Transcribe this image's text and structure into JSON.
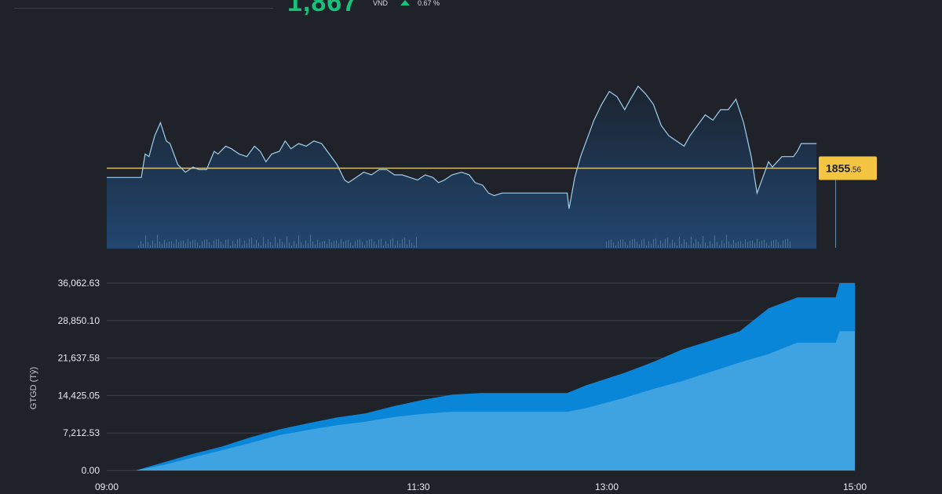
{
  "header": {
    "price": "1,867",
    "currency": "VND",
    "change_pct": "0.67 %",
    "accent_up": "#18c27a"
  },
  "chart_data": [
    {
      "type": "line",
      "series": [
        {
          "points": [
            [
              "09:00",
              1852
            ],
            [
              "09:10",
              1852
            ],
            [
              "09:18",
              1852
            ],
            [
              "09:20",
              1861
            ],
            [
              "09:22",
              1860
            ],
            [
              "09:25",
              1868
            ],
            [
              "09:28",
              1873
            ],
            [
              "09:31",
              1866
            ],
            [
              "09:33",
              1865
            ],
            [
              "09:37",
              1857
            ],
            [
              "09:41",
              1854
            ],
            [
              "09:45",
              1856
            ],
            [
              "09:48",
              1855
            ],
            [
              "09:52",
              1855
            ],
            [
              "09:56",
              1862
            ],
            [
              "09:58",
              1861
            ],
            [
              "10:02",
              1864
            ],
            [
              "10:05",
              1863
            ],
            [
              "10:09",
              1861
            ],
            [
              "10:13",
              1860
            ],
            [
              "10:17",
              1864
            ],
            [
              "10:20",
              1862
            ],
            [
              "10:23",
              1858
            ],
            [
              "10:26",
              1861
            ],
            [
              "10:30",
              1862
            ],
            [
              "10:33",
              1866
            ],
            [
              "10:36",
              1863
            ],
            [
              "10:40",
              1865
            ],
            [
              "10:44",
              1864
            ],
            [
              "10:48",
              1866
            ],
            [
              "10:52",
              1865
            ],
            [
              "10:56",
              1861
            ],
            [
              "11:00",
              1857
            ],
            [
              "11:04",
              1851
            ],
            [
              "11:06",
              1850
            ],
            [
              "11:10",
              1852
            ],
            [
              "11:14",
              1854
            ],
            [
              "11:18",
              1853
            ],
            [
              "11:22",
              1855
            ],
            [
              "11:26",
              1855
            ],
            [
              "11:30",
              1853
            ],
            [
              "11:34",
              1853
            ],
            [
              "11:38",
              1852
            ],
            [
              "11:42",
              1851
            ],
            [
              "11:46",
              1853
            ],
            [
              "11:50",
              1852
            ],
            [
              "11:53",
              1850
            ],
            [
              "11:56",
              1851
            ],
            [
              "12:00",
              1853
            ],
            [
              "12:05",
              1854
            ],
            [
              "12:09",
              1853
            ],
            [
              "12:12",
              1850
            ],
            [
              "12:16",
              1849
            ],
            [
              "12:19",
              1846
            ],
            [
              "12:22",
              1845
            ],
            [
              "12:26",
              1846
            ],
            [
              "12:29",
              1846
            ],
            [
              "12:30",
              1846
            ],
            [
              "13:00",
              1846
            ],
            [
              "13:01",
              1840
            ],
            [
              "13:04",
              1852
            ],
            [
              "13:07",
              1860
            ],
            [
              "13:10",
              1866
            ],
            [
              "13:14",
              1874
            ],
            [
              "13:18",
              1880
            ],
            [
              "13:22",
              1885
            ],
            [
              "13:26",
              1883
            ],
            [
              "13:30",
              1878
            ],
            [
              "13:33",
              1882
            ],
            [
              "13:37",
              1887
            ],
            [
              "13:41",
              1884
            ],
            [
              "13:45",
              1880
            ],
            [
              "13:49",
              1872
            ],
            [
              "13:53",
              1868
            ],
            [
              "13:57",
              1866
            ],
            [
              "14:01",
              1864
            ],
            [
              "14:04",
              1868
            ],
            [
              "14:08",
              1872
            ],
            [
              "14:12",
              1876
            ],
            [
              "14:16",
              1874
            ],
            [
              "14:20",
              1878
            ],
            [
              "14:24",
              1878
            ],
            [
              "14:28",
              1882
            ],
            [
              "14:32",
              1873
            ],
            [
              "14:36",
              1860
            ],
            [
              "14:39",
              1846
            ],
            [
              "14:42",
              1852
            ],
            [
              "14:45",
              1858
            ],
            [
              "14:47",
              1856
            ],
            [
              "14:52",
              1860
            ],
            [
              "14:58",
              1860
            ],
            [
              "15:00",
              1862
            ],
            [
              "15:02",
              1865
            ],
            [
              "15:06",
              1865
            ],
            [
              "15:10",
              1865
            ]
          ]
        }
      ],
      "reference_price_label_int": "1855",
      "reference_price_label_dec": ".56",
      "reference_price": 1855.56,
      "ylim": [
        1825,
        1890
      ],
      "colors": {
        "line": "#9fd0ee",
        "reference": "#d7bf78",
        "tag": "#f4c542"
      }
    },
    {
      "type": "area",
      "ylabel": "GTGD (Tỷ)",
      "yticks": [
        "36,062.63",
        "28,850.10",
        "21,637.58",
        "14,425.05",
        "7,212.53",
        "0.00"
      ],
      "ytick_values": [
        36062.63,
        28850.1,
        21637.58,
        14425.05,
        7212.53,
        0
      ],
      "xticks": [
        "09:00",
        "11:30",
        "13:00",
        "15:00"
      ],
      "ylim": [
        0,
        36062.63
      ],
      "series": [
        {
          "name": "",
          "color": "#0a86d8",
          "points": [
            [
              "09:00",
              0
            ],
            [
              "09:15",
              0
            ],
            [
              "09:30",
              1600
            ],
            [
              "09:45",
              3200
            ],
            [
              "10:00",
              4600
            ],
            [
              "10:15",
              6400
            ],
            [
              "10:30",
              7900
            ],
            [
              "10:45",
              9100
            ],
            [
              "11:00",
              10200
            ],
            [
              "11:15",
              11000
            ],
            [
              "11:30",
              12400
            ],
            [
              "11:45",
              13600
            ],
            [
              "12:00",
              14600
            ],
            [
              "12:15",
              14900
            ],
            [
              "12:30",
              14900
            ],
            [
              "13:00",
              14900
            ],
            [
              "13:10",
              16400
            ],
            [
              "13:30",
              18800
            ],
            [
              "13:45",
              20900
            ],
            [
              "14:00",
              23300
            ],
            [
              "14:15",
              25000
            ],
            [
              "14:30",
              26800
            ],
            [
              "14:45",
              31200
            ],
            [
              "15:00",
              33300
            ],
            [
              "15:20",
              33300
            ],
            [
              "15:22",
              36062.63
            ],
            [
              "15:30",
              36062.63
            ]
          ]
        },
        {
          "name": "",
          "color": "#3ea3e0",
          "points": [
            [
              "09:00",
              0
            ],
            [
              "09:15",
              0
            ],
            [
              "09:30",
              1100
            ],
            [
              "09:45",
              2500
            ],
            [
              "10:00",
              3900
            ],
            [
              "10:15",
              5300
            ],
            [
              "10:30",
              6800
            ],
            [
              "10:45",
              7800
            ],
            [
              "11:00",
              8700
            ],
            [
              "11:15",
              9400
            ],
            [
              "11:30",
              10300
            ],
            [
              "11:45",
              10900
            ],
            [
              "12:00",
              11300
            ],
            [
              "12:15",
              11300
            ],
            [
              "12:30",
              11300
            ],
            [
              "13:00",
              11300
            ],
            [
              "13:10",
              12000
            ],
            [
              "13:30",
              14000
            ],
            [
              "13:45",
              15700
            ],
            [
              "14:00",
              17200
            ],
            [
              "14:15",
              19000
            ],
            [
              "14:30",
              20800
            ],
            [
              "14:45",
              22400
            ],
            [
              "15:00",
              24600
            ],
            [
              "15:20",
              24600
            ],
            [
              "15:22",
              26800
            ],
            [
              "15:30",
              26800
            ]
          ]
        }
      ]
    }
  ]
}
